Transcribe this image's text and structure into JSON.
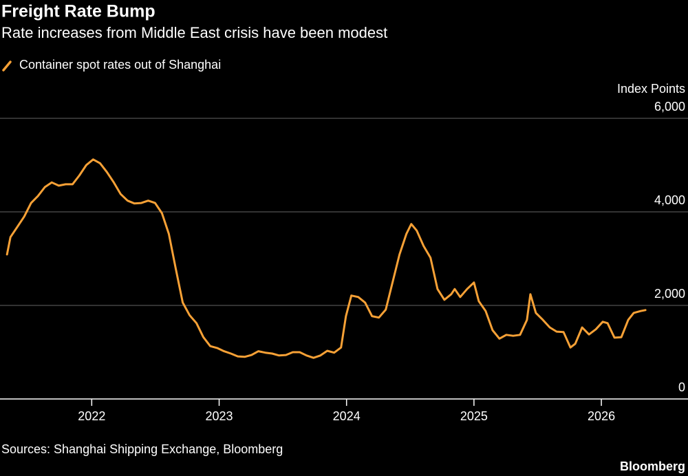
{
  "chart_data": {
    "type": "line",
    "title": "Freight Rate Bump",
    "subtitle": "Rate increases from Middle East crisis have been modest",
    "y_label": "Index Points",
    "source": "Sources: Shanghai Shipping Exchange, Bloomberg",
    "brand": "Bloomberg",
    "grid": true,
    "xlim": [
      2021.28,
      2026.68
    ],
    "xticks": [
      2022,
      2023,
      2024,
      2025,
      2026
    ],
    "ylim": [
      0,
      6000
    ],
    "yticks": [
      0,
      {
        "value": 2000,
        "label": "2,000"
      },
      {
        "value": 4000,
        "label": "4,000"
      },
      {
        "value": 6000,
        "label": "6,000"
      }
    ],
    "x": [
      2021.335,
      2021.362,
      2021.416,
      2021.47,
      2021.524,
      2021.578,
      2021.632,
      2021.686,
      2021.741,
      2021.795,
      2021.849,
      2021.903,
      2021.957,
      2022.011,
      2022.065,
      2022.119,
      2022.173,
      2022.227,
      2022.281,
      2022.335,
      2022.389,
      2022.443,
      2022.497,
      2022.551,
      2022.605,
      2022.659,
      2022.714,
      2022.768,
      2022.822,
      2022.876,
      2022.93,
      2022.984,
      2023.038,
      2023.092,
      2023.146,
      2023.2,
      2023.254,
      2023.308,
      2023.362,
      2023.416,
      2023.47,
      2023.524,
      2023.578,
      2023.632,
      2023.686,
      2023.741,
      2023.795,
      2023.849,
      2023.903,
      2023.957,
      2023.995,
      2024.038,
      2024.092,
      2024.146,
      2024.2,
      2024.254,
      2024.308,
      2024.362,
      2024.416,
      2024.47,
      2024.508,
      2024.551,
      2024.605,
      2024.659,
      2024.714,
      2024.768,
      2024.822,
      2024.849,
      2024.892,
      2024.946,
      2025.0,
      2025.038,
      2025.092,
      2025.146,
      2025.2,
      2025.254,
      2025.308,
      2025.362,
      2025.416,
      2025.443,
      2025.486,
      2025.541,
      2025.595,
      2025.649,
      2025.703,
      2025.757,
      2025.795,
      2025.849,
      2025.903,
      2025.957,
      2026.011,
      2026.049,
      2026.103,
      2026.157,
      2026.211,
      2026.254,
      2026.308,
      2026.346
    ],
    "series": [
      {
        "name": "Container spot rates out of Shanghai",
        "color": "#f7a136",
        "values": [
          3090,
          3460,
          3680,
          3900,
          4190,
          4340,
          4530,
          4630,
          4560,
          4590,
          4590,
          4780,
          5000,
          5120,
          5040,
          4850,
          4630,
          4380,
          4240,
          4180,
          4190,
          4240,
          4190,
          3970,
          3530,
          2790,
          2060,
          1790,
          1620,
          1320,
          1130,
          1090,
          1020,
          970,
          910,
          900,
          940,
          1020,
          990,
          970,
          930,
          940,
          1000,
          1000,
          930,
          880,
          930,
          1030,
          990,
          1100,
          1770,
          2210,
          2180,
          2060,
          1770,
          1740,
          1910,
          2500,
          3090,
          3530,
          3740,
          3600,
          3270,
          3020,
          2350,
          2120,
          2240,
          2350,
          2180,
          2350,
          2490,
          2090,
          1880,
          1470,
          1290,
          1370,
          1350,
          1370,
          1690,
          2240,
          1840,
          1690,
          1530,
          1440,
          1430,
          1100,
          1180,
          1530,
          1380,
          1490,
          1650,
          1620,
          1310,
          1320,
          1690,
          1840,
          1880,
          1900
        ]
      }
    ]
  }
}
